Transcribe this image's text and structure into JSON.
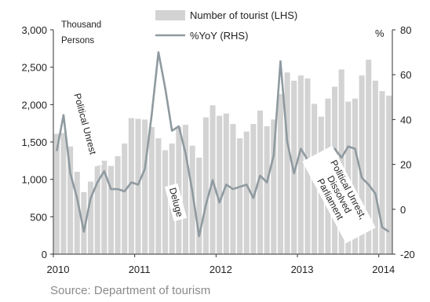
{
  "source_note": "Source: Department of tourism",
  "chart_data": {
    "type": "bar",
    "title": "",
    "left_axis_unit": [
      "Thousand",
      "Persons"
    ],
    "right_axis_unit": "%",
    "ylim_left": [
      0,
      3000
    ],
    "yticks_left": [
      "0",
      "500",
      "1,000",
      "1,500",
      "2,000",
      "2,500",
      "3,000"
    ],
    "ylim_right": [
      -20,
      80
    ],
    "yticks_right": [
      "-20",
      "0",
      "20",
      "40",
      "60",
      "80"
    ],
    "xticks": [
      "2010",
      "2011",
      "2012",
      "2013",
      "2014"
    ],
    "grid": false,
    "legend_position": "top-center",
    "colors": {
      "bars": "#d3d3d3",
      "line": "#8f9aa0",
      "axis": "#333333"
    },
    "series": [
      {
        "name": "Number of tourist (LHS)",
        "type": "bar",
        "axis": "left",
        "values": [
          1610,
          1620,
          1440,
          1100,
          830,
          970,
          1270,
          1250,
          1180,
          1310,
          1480,
          1820,
          1810,
          1800,
          1700,
          1550,
          1390,
          1480,
          1700,
          1730,
          1450,
          1290,
          1830,
          1990,
          1850,
          1880,
          1740,
          1550,
          1640,
          1740,
          1920,
          1710,
          1800,
          2140,
          2430,
          2320,
          2390,
          2350,
          2010,
          1840,
          2080,
          2240,
          2470,
          2040,
          2080,
          2390,
          2600,
          2320,
          2180,
          2120
        ]
      },
      {
        "name": "%YoY (RHS)",
        "type": "line",
        "axis": "right",
        "values": [
          26,
          42,
          16,
          5,
          -10,
          5,
          12,
          17,
          9,
          9,
          8,
          12,
          11,
          18,
          42,
          70,
          54,
          35,
          37,
          25,
          8,
          -12,
          2,
          13,
          3,
          11,
          9,
          10,
          11,
          5,
          15,
          12,
          24,
          66,
          30,
          16,
          27,
          22,
          19,
          20,
          22,
          27,
          23,
          28,
          27,
          14,
          11,
          7,
          -8,
          -10
        ]
      }
    ],
    "annotations": [
      {
        "text": "Political Unrest"
      },
      {
        "text": "Deluge"
      },
      {
        "text": "Political Unrest, Dissolved Parliament"
      }
    ]
  }
}
